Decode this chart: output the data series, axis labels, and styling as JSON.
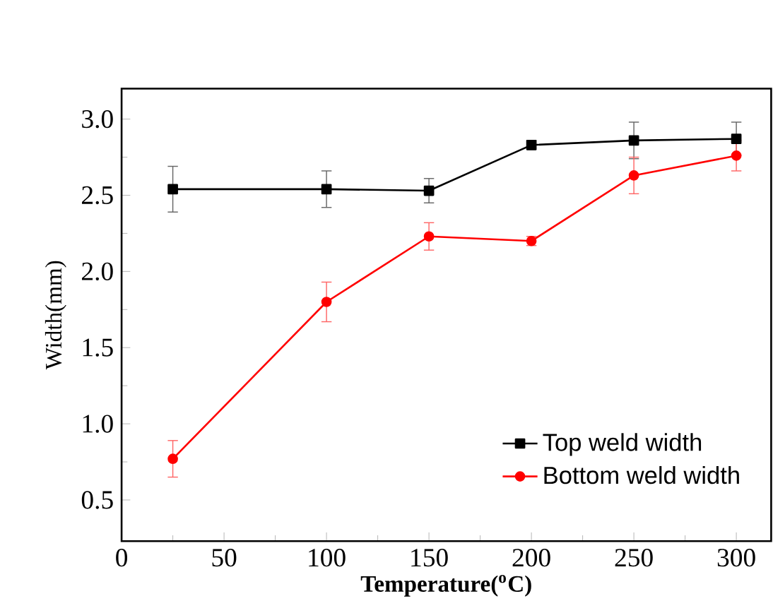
{
  "chart_data": {
    "type": "line",
    "xlabel": "**Temperature($^{o}$C)**",
    "ylabel": "Width(mm)",
    "x": [
      25,
      100,
      150,
      200,
      250,
      300
    ],
    "series": [
      {
        "name": "Top weld width",
        "color": "#000000",
        "marker": "square",
        "values": [
          2.54,
          2.54,
          2.53,
          2.83,
          2.86,
          2.87
        ],
        "errors": [
          0.15,
          0.12,
          0.08,
          0.03,
          0.12,
          0.11
        ]
      },
      {
        "name": "Bottom weld width",
        "color": "#ff0000",
        "marker": "circle",
        "values": [
          0.77,
          1.8,
          2.23,
          2.2,
          2.63,
          2.76
        ],
        "errors": [
          0.12,
          0.13,
          0.09,
          0.03,
          0.12,
          0.1
        ]
      }
    ],
    "xlim": [
      0,
      317
    ],
    "ylim": [
      0.23,
      3.2
    ],
    "xticks": [
      0,
      50,
      100,
      150,
      200,
      250,
      300
    ],
    "yticks": [
      0.5,
      {
        "value": 1.0,
        "label": "1.0"
      },
      1.5,
      {
        "value": 2.0,
        "label": "2.0"
      },
      2.5,
      {
        "value": 3.0,
        "label": "3.0"
      }
    ],
    "legend": "bottom right",
    "grid": false,
    "line_style": "solid"
  }
}
